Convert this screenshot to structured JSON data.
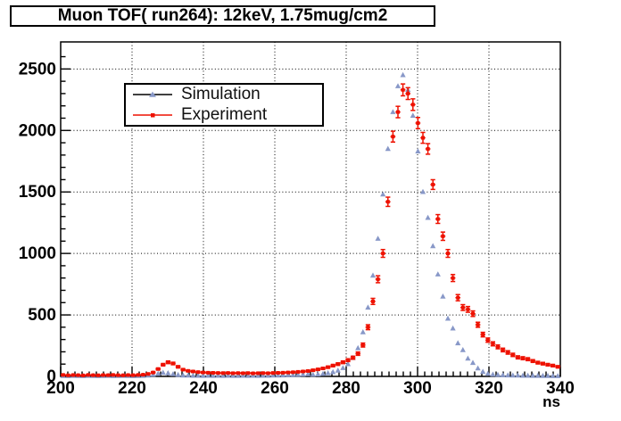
{
  "title": "Muon TOF( run264): 12keV, 1.75mug/cm2",
  "legend": {
    "items": [
      {
        "label": "Simulation",
        "marker": "triangle",
        "marker_color": "#8898c8",
        "line_color": "#000000"
      },
      {
        "label": "Experiment",
        "marker": "square",
        "marker_color": "#ee1100",
        "line_color": "#ee1100"
      }
    ]
  },
  "axis": {
    "x_title": "ns",
    "x_tick_labels": [
      "200",
      "220",
      "240",
      "260",
      "280",
      "300",
      "320",
      "340"
    ],
    "y_tick_labels": [
      "0",
      "500",
      "1000",
      "1500",
      "2000",
      "2500"
    ]
  },
  "colors": {
    "frame": "#000000",
    "grid": "#000000",
    "simulation": "#8898c8",
    "experiment": "#ee1100",
    "background": "#ffffff"
  },
  "chart_data": {
    "type": "scatter",
    "title": "Muon TOF( run264): 12keV, 1.75mug/cm2",
    "xlabel": "ns",
    "ylabel": "",
    "x_range": [
      200,
      340
    ],
    "y_range": [
      0,
      2720
    ],
    "x_major_ticks": [
      200,
      220,
      240,
      260,
      280,
      300,
      320,
      340
    ],
    "x_minor_tick_step": 2,
    "y_major_ticks": [
      0,
      500,
      1000,
      1500,
      2000,
      2500
    ],
    "y_minor_tick_step": 100,
    "grid": "dotted",
    "legend_position": "top-left-inside",
    "bin_width_ns": 1.4,
    "x_centers": [
      200.7,
      202.1,
      203.5,
      204.9,
      206.3,
      207.7,
      209.1,
      210.5,
      211.9,
      213.3,
      214.7,
      216.1,
      217.5,
      218.9,
      220.3,
      221.7,
      223.1,
      224.5,
      225.9,
      227.3,
      228.7,
      230.1,
      231.5,
      232.9,
      234.3,
      235.7,
      237.1,
      238.5,
      239.9,
      241.3,
      242.7,
      244.1,
      245.5,
      246.9,
      248.3,
      249.7,
      251.1,
      252.5,
      253.9,
      255.3,
      256.7,
      258.1,
      259.5,
      260.9,
      262.3,
      263.7,
      265.1,
      266.5,
      267.9,
      269.3,
      270.7,
      272.1,
      273.5,
      274.9,
      276.3,
      277.7,
      279.1,
      280.5,
      281.9,
      283.3,
      284.7,
      286.1,
      287.5,
      288.9,
      290.3,
      291.7,
      293.1,
      294.5,
      295.9,
      297.3,
      298.7,
      300.1,
      301.5,
      302.9,
      304.3,
      305.7,
      307.1,
      308.5,
      309.9,
      311.3,
      312.7,
      314.1,
      315.5,
      316.9,
      318.3,
      319.7,
      321.1,
      322.5,
      323.9,
      325.3,
      326.7,
      328.1,
      329.5,
      330.9,
      332.3,
      333.7,
      335.1,
      336.5,
      337.9,
      339.3
    ],
    "series": [
      {
        "name": "Simulation",
        "marker": "triangle",
        "color": "#8898c8",
        "error_bars": false,
        "y": [
          4,
          3,
          5,
          4,
          3,
          5,
          4,
          3,
          4,
          5,
          3,
          4,
          5,
          4,
          3,
          4,
          5,
          8,
          14,
          22,
          30,
          26,
          18,
          12,
          8,
          7,
          6,
          6,
          5,
          6,
          5,
          6,
          5,
          6,
          5,
          5,
          6,
          5,
          6,
          5,
          6,
          6,
          7,
          8,
          9,
          10,
          11,
          13,
          15,
          18,
          14,
          17,
          21,
          27,
          35,
          48,
          68,
          100,
          150,
          230,
          360,
          560,
          820,
          1120,
          1480,
          1850,
          2150,
          2360,
          2450,
          2330,
          2120,
          1830,
          1500,
          1290,
          1060,
          830,
          650,
          470,
          390,
          270,
          215,
          145,
          110,
          65,
          38,
          22,
          15,
          12,
          10,
          9,
          8,
          7,
          6,
          6,
          5,
          5,
          4,
          4,
          3,
          3
        ]
      },
      {
        "name": "Experiment",
        "marker": "square",
        "color": "#ee1100",
        "error_bars": true,
        "error_model": "sqrt(count)",
        "y": [
          12,
          9,
          11,
          10,
          8,
          12,
          10,
          9,
          11,
          10,
          12,
          10,
          9,
          11,
          10,
          12,
          14,
          20,
          32,
          60,
          95,
          115,
          105,
          78,
          55,
          45,
          40,
          35,
          32,
          30,
          29,
          28,
          27,
          28,
          26,
          27,
          26,
          27,
          25,
          26,
          27,
          26,
          28,
          29,
          30,
          32,
          34,
          37,
          40,
          44,
          50,
          57,
          65,
          75,
          88,
          100,
          115,
          132,
          152,
          185,
          255,
          400,
          610,
          790,
          1000,
          1420,
          1950,
          2150,
          2330,
          2300,
          2210,
          2060,
          1940,
          1850,
          1560,
          1280,
          1140,
          1000,
          800,
          640,
          560,
          545,
          510,
          420,
          340,
          295,
          265,
          240,
          215,
          195,
          175,
          155,
          148,
          140,
          125,
          112,
          104,
          95,
          88,
          78
        ]
      }
    ]
  }
}
